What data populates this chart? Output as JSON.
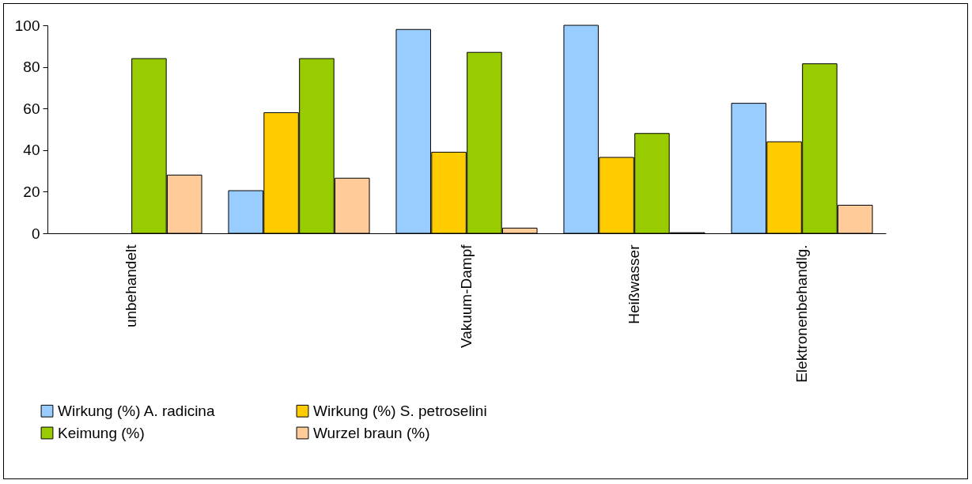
{
  "chart_data": {
    "type": "bar",
    "categories": [
      "unbehandelt",
      null,
      "Vakuum-Dampf",
      "Heißwasser",
      "Elektronenbehandlg."
    ],
    "series": [
      {
        "name": "Wirkung (%) A. radicina",
        "color": "#99ccff",
        "values": [
          null,
          20.5,
          98,
          100,
          62.5
        ]
      },
      {
        "name": "Wirkung (%) S. petroselini",
        "color": "#ffcc00",
        "values": [
          null,
          58,
          39,
          36.5,
          44
        ]
      },
      {
        "name": "Keimung (%)",
        "color": "#99cc00",
        "values": [
          84,
          84,
          87,
          48,
          81.5
        ]
      },
      {
        "name": "Wurzel braun (%)",
        "color": "#ffcc99",
        "values": [
          28,
          26.5,
          2.5,
          0.3,
          13.5
        ]
      }
    ],
    "ylim": [
      0,
      100
    ],
    "yticks": [
      0,
      20,
      40,
      60,
      80,
      100
    ],
    "grid": false,
    "legend": "bottom"
  }
}
